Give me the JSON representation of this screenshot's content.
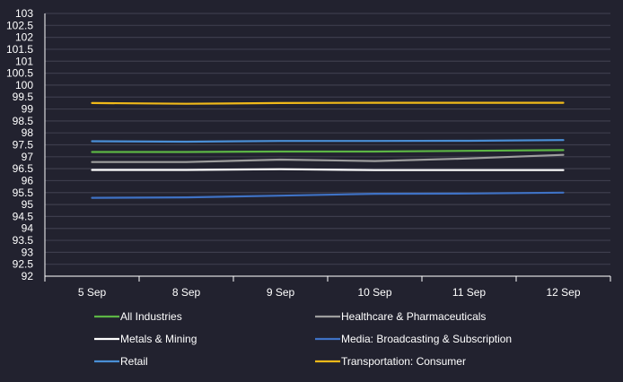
{
  "chart_data": {
    "type": "line",
    "title": "",
    "xlabel": "",
    "ylabel": "",
    "categories": [
      "5 Sep",
      "8 Sep",
      "9 Sep",
      "10 Sep",
      "11 Sep",
      "12 Sep"
    ],
    "ylim": [
      92,
      103
    ],
    "yticks": [
      "103",
      "102.5",
      "102",
      "101.5",
      "101",
      "100.5",
      "100",
      "99.5",
      "99",
      "98.5",
      "98",
      "97.5",
      "97",
      "96.5",
      "96",
      "95.5",
      "95",
      "94.5",
      "94",
      "93.5",
      "93",
      "92.5",
      "92"
    ],
    "grid": true,
    "legend_position": "bottom",
    "series": [
      {
        "name": "All Industries",
        "color": "#5cb545",
        "values": [
          97.2,
          97.2,
          97.22,
          97.22,
          97.25,
          97.28
        ]
      },
      {
        "name": "Healthcare & Pharmaceuticals",
        "color": "#9e9e9e",
        "values": [
          96.78,
          96.78,
          96.88,
          96.82,
          96.93,
          97.08
        ]
      },
      {
        "name": "Metals & Mining",
        "color": "#ffffff",
        "values": [
          96.45,
          96.45,
          96.48,
          96.44,
          96.44,
          96.44
        ]
      },
      {
        "name": "Media: Broadcasting & Subscription",
        "color": "#3f72c5",
        "values": [
          95.28,
          95.3,
          95.37,
          95.45,
          95.46,
          95.5
        ]
      },
      {
        "name": "Retail",
        "color": "#4a8fd6",
        "values": [
          97.65,
          97.63,
          97.66,
          97.66,
          97.67,
          97.7
        ]
      },
      {
        "name": "Transportation: Consumer",
        "color": "#f0b919",
        "values": [
          99.25,
          99.22,
          99.25,
          99.26,
          99.26,
          99.26
        ]
      }
    ]
  }
}
